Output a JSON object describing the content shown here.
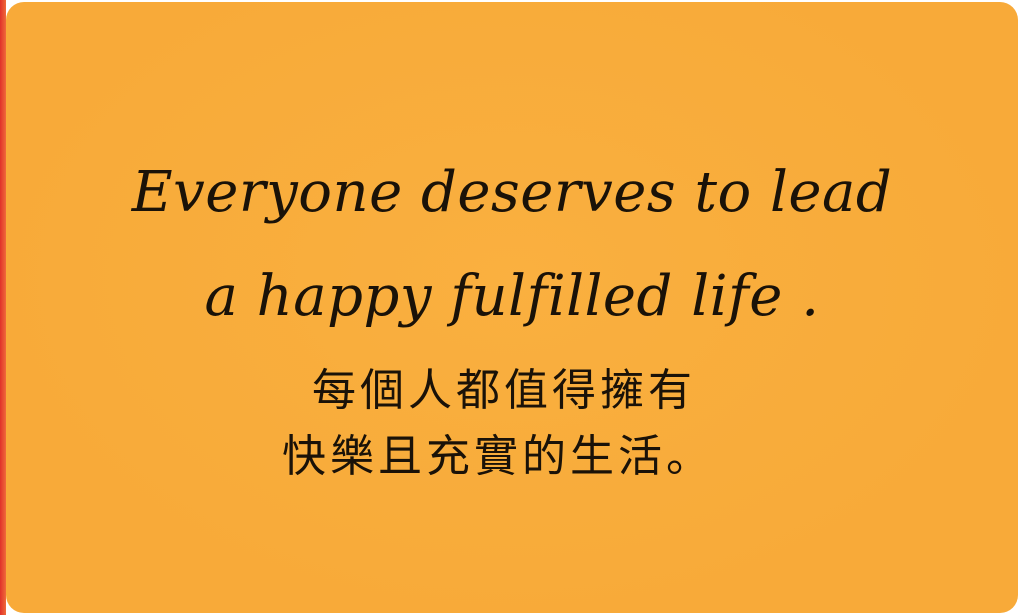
{
  "card": {
    "english_line_1": "Everyone deserves to lead",
    "english_line_2": "a happy fulfilled life .",
    "chinese_line_1": "每個人都值得擁有",
    "chinese_line_2": "快樂且充實的生活。"
  },
  "colors": {
    "card_background": "#f8ab3a",
    "text": "#1a1208",
    "left_edge": "#e0322a"
  }
}
